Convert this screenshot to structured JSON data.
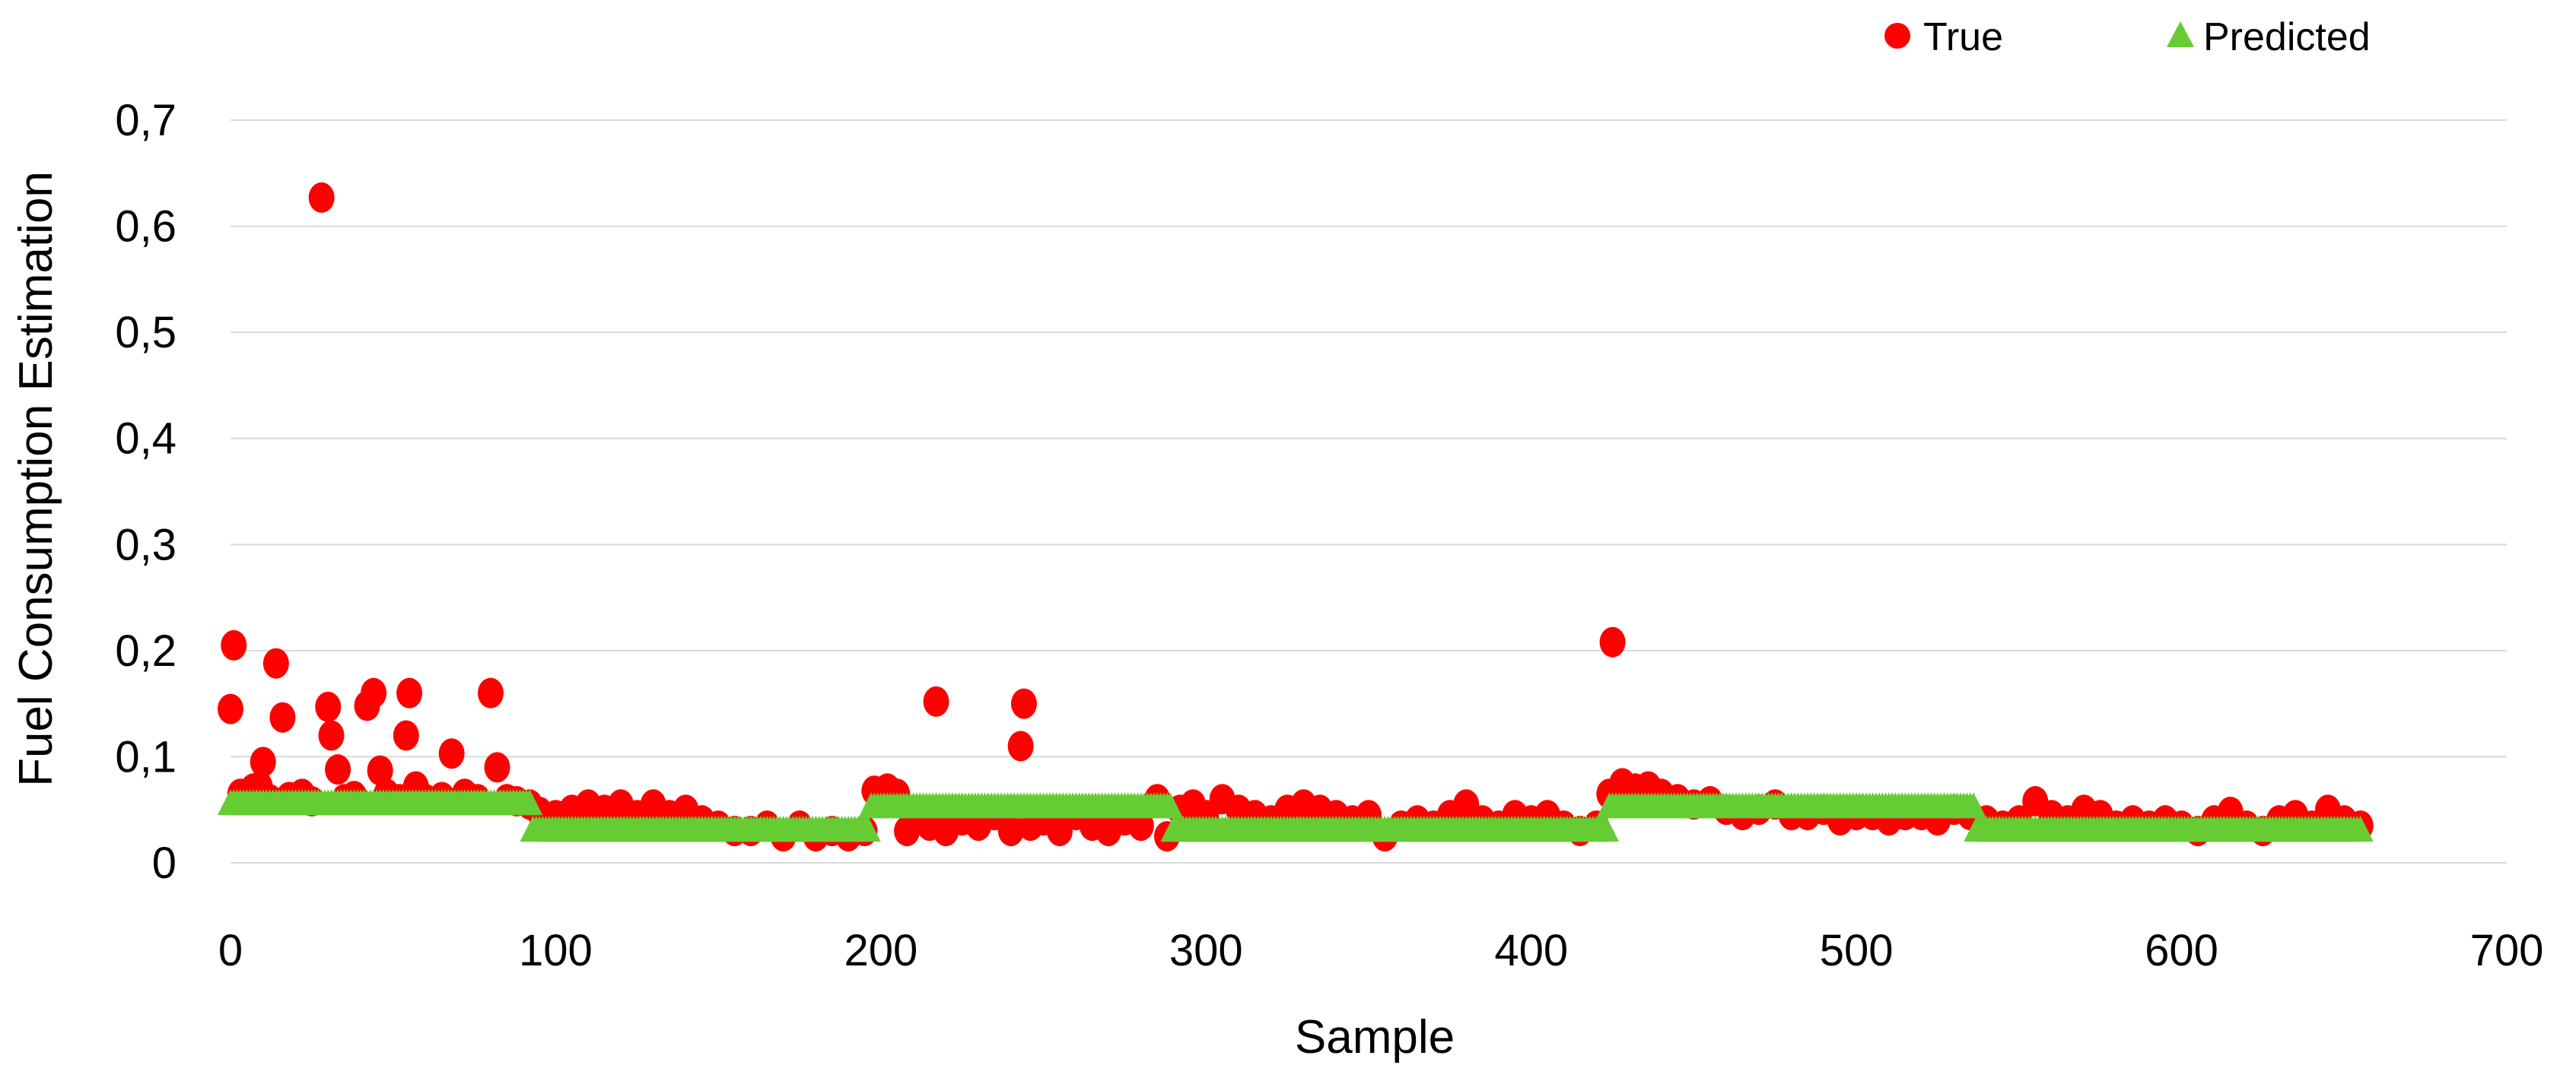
{
  "chart_data": {
    "type": "scatter",
    "title": "",
    "xlabel": "Sample",
    "ylabel": "Fuel Consumption Estimation",
    "xlim": [
      0,
      700
    ],
    "ylim": [
      0,
      0.7
    ],
    "x_ticks": [
      "0",
      "100",
      "200",
      "300",
      "400",
      "500",
      "600",
      "700"
    ],
    "y_ticks": [
      "0",
      "0,1",
      "0,2",
      "0,3",
      "0,4",
      "0,5",
      "0,6",
      "0,7"
    ],
    "grid": "horizontal",
    "legend_position": "top-right",
    "colors": {
      "true": "#ff0000",
      "predicted": "#66cc33"
    },
    "series": [
      {
        "name": "True",
        "marker": "circle",
        "points": [
          [
            0,
            0.145
          ],
          [
            1,
            0.205
          ],
          [
            3,
            0.065
          ],
          [
            5,
            0.06
          ],
          [
            7,
            0.07
          ],
          [
            9,
            0.072
          ],
          [
            10,
            0.095
          ],
          [
            12,
            0.06
          ],
          [
            14,
            0.188
          ],
          [
            16,
            0.137
          ],
          [
            18,
            0.062
          ],
          [
            20,
            0.06
          ],
          [
            22,
            0.065
          ],
          [
            25,
            0.058
          ],
          [
            28,
            0.627
          ],
          [
            30,
            0.147
          ],
          [
            31,
            0.12
          ],
          [
            33,
            0.088
          ],
          [
            35,
            0.06
          ],
          [
            38,
            0.063
          ],
          [
            42,
            0.148
          ],
          [
            44,
            0.16
          ],
          [
            46,
            0.087
          ],
          [
            48,
            0.065
          ],
          [
            52,
            0.06
          ],
          [
            54,
            0.12
          ],
          [
            55,
            0.16
          ],
          [
            57,
            0.072
          ],
          [
            60,
            0.06
          ],
          [
            65,
            0.062
          ],
          [
            68,
            0.103
          ],
          [
            72,
            0.065
          ],
          [
            76,
            0.06
          ],
          [
            80,
            0.16
          ],
          [
            82,
            0.09
          ],
          [
            85,
            0.06
          ],
          [
            88,
            0.058
          ],
          [
            92,
            0.055
          ],
          [
            95,
            0.048
          ],
          [
            100,
            0.045
          ],
          [
            105,
            0.05
          ],
          [
            110,
            0.055
          ],
          [
            115,
            0.05
          ],
          [
            120,
            0.055
          ],
          [
            125,
            0.045
          ],
          [
            130,
            0.055
          ],
          [
            135,
            0.045
          ],
          [
            140,
            0.05
          ],
          [
            145,
            0.04
          ],
          [
            150,
            0.035
          ],
          [
            155,
            0.03
          ],
          [
            160,
            0.03
          ],
          [
            165,
            0.035
          ],
          [
            170,
            0.025
          ],
          [
            175,
            0.035
          ],
          [
            180,
            0.025
          ],
          [
            185,
            0.03
          ],
          [
            190,
            0.025
          ],
          [
            195,
            0.03
          ],
          [
            198,
            0.068
          ],
          [
            202,
            0.07
          ],
          [
            205,
            0.065
          ],
          [
            208,
            0.03
          ],
          [
            212,
            0.04
          ],
          [
            215,
            0.035
          ],
          [
            217,
            0.152
          ],
          [
            220,
            0.03
          ],
          [
            225,
            0.04
          ],
          [
            230,
            0.035
          ],
          [
            235,
            0.045
          ],
          [
            240,
            0.03
          ],
          [
            243,
            0.11
          ],
          [
            244,
            0.15
          ],
          [
            246,
            0.035
          ],
          [
            250,
            0.04
          ],
          [
            255,
            0.03
          ],
          [
            260,
            0.045
          ],
          [
            265,
            0.035
          ],
          [
            270,
            0.03
          ],
          [
            275,
            0.04
          ],
          [
            280,
            0.035
          ],
          [
            285,
            0.06
          ],
          [
            288,
            0.025
          ],
          [
            292,
            0.05
          ],
          [
            296,
            0.055
          ],
          [
            300,
            0.045
          ],
          [
            305,
            0.06
          ],
          [
            310,
            0.05
          ],
          [
            315,
            0.045
          ],
          [
            320,
            0.04
          ],
          [
            325,
            0.05
          ],
          [
            330,
            0.055
          ],
          [
            335,
            0.05
          ],
          [
            340,
            0.045
          ],
          [
            345,
            0.04
          ],
          [
            350,
            0.045
          ],
          [
            355,
            0.025
          ],
          [
            360,
            0.035
          ],
          [
            365,
            0.04
          ],
          [
            370,
            0.035
          ],
          [
            375,
            0.045
          ],
          [
            380,
            0.055
          ],
          [
            385,
            0.04
          ],
          [
            390,
            0.035
          ],
          [
            395,
            0.045
          ],
          [
            400,
            0.04
          ],
          [
            405,
            0.045
          ],
          [
            410,
            0.035
          ],
          [
            415,
            0.03
          ],
          [
            420,
            0.035
          ],
          [
            424,
            0.065
          ],
          [
            425,
            0.208
          ],
          [
            428,
            0.075
          ],
          [
            432,
            0.07
          ],
          [
            436,
            0.072
          ],
          [
            440,
            0.065
          ],
          [
            445,
            0.06
          ],
          [
            450,
            0.055
          ],
          [
            455,
            0.058
          ],
          [
            460,
            0.05
          ],
          [
            465,
            0.045
          ],
          [
            470,
            0.05
          ],
          [
            475,
            0.055
          ],
          [
            480,
            0.045
          ],
          [
            485,
            0.045
          ],
          [
            490,
            0.05
          ],
          [
            495,
            0.04
          ],
          [
            500,
            0.045
          ],
          [
            505,
            0.045
          ],
          [
            510,
            0.04
          ],
          [
            515,
            0.045
          ],
          [
            520,
            0.045
          ],
          [
            525,
            0.04
          ],
          [
            530,
            0.05
          ],
          [
            535,
            0.045
          ],
          [
            540,
            0.04
          ],
          [
            545,
            0.035
          ],
          [
            550,
            0.04
          ],
          [
            555,
            0.058
          ],
          [
            560,
            0.045
          ],
          [
            565,
            0.04
          ],
          [
            570,
            0.05
          ],
          [
            575,
            0.045
          ],
          [
            580,
            0.035
          ],
          [
            585,
            0.04
          ],
          [
            590,
            0.035
          ],
          [
            595,
            0.04
          ],
          [
            600,
            0.035
          ],
          [
            605,
            0.03
          ],
          [
            610,
            0.04
          ],
          [
            615,
            0.048
          ],
          [
            620,
            0.035
          ],
          [
            625,
            0.03
          ],
          [
            630,
            0.04
          ],
          [
            635,
            0.045
          ],
          [
            640,
            0.035
          ],
          [
            645,
            0.05
          ],
          [
            650,
            0.04
          ],
          [
            655,
            0.035
          ]
        ]
      },
      {
        "name": "Predicted",
        "marker": "triangle",
        "segments": [
          {
            "x_start": 0,
            "x_end": 92,
            "value": 0.055
          },
          {
            "x_start": 93,
            "x_end": 196,
            "value": 0.03
          },
          {
            "x_start": 197,
            "x_end": 289,
            "value": 0.052
          },
          {
            "x_start": 290,
            "x_end": 423,
            "value": 0.03
          },
          {
            "x_start": 424,
            "x_end": 536,
            "value": 0.052
          },
          {
            "x_start": 537,
            "x_end": 655,
            "value": 0.03
          }
        ]
      }
    ]
  }
}
